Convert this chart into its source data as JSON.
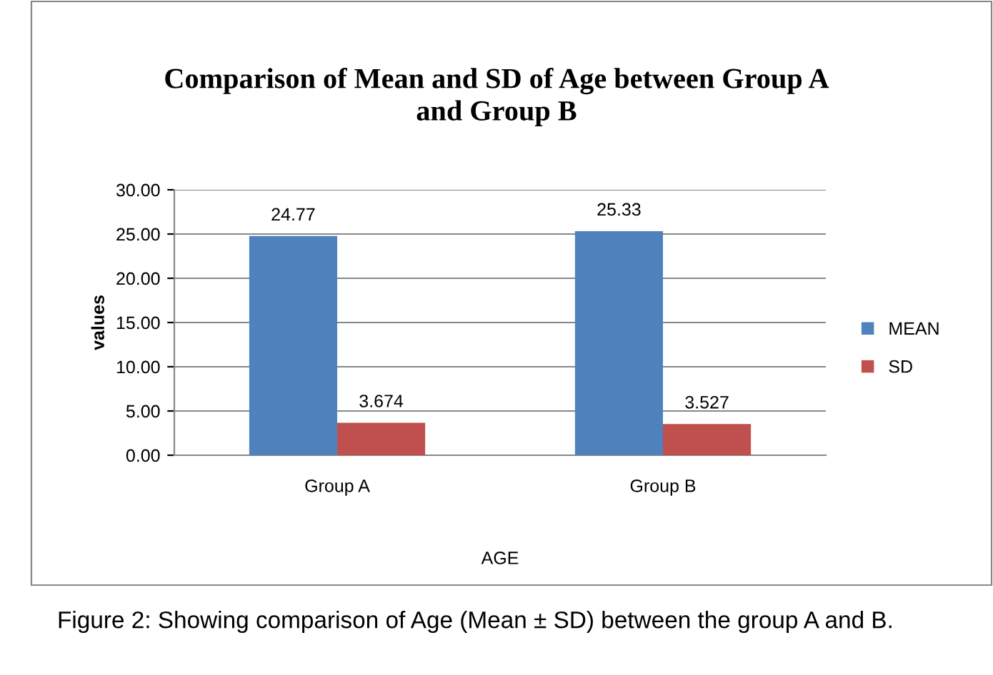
{
  "chart_data": {
    "type": "bar",
    "title": "Comparison of Mean and SD of Age between Group A\nand Group B",
    "categories": [
      "Group A",
      "Group B"
    ],
    "series": [
      {
        "name": "MEAN",
        "color": "#4f81bd",
        "values": [
          24.77,
          25.33
        ],
        "value_labels": [
          "24.77",
          "25.33"
        ]
      },
      {
        "name": "SD",
        "color": "#c0504d",
        "values": [
          3.674,
          3.527
        ],
        "value_labels": [
          "3.674",
          "3.527"
        ]
      }
    ],
    "xlabel": "AGE",
    "ylabel": "values",
    "ylim": [
      0,
      30
    ],
    "yticks": [
      {
        "value": 0,
        "label": "0.00"
      },
      {
        "value": 5,
        "label": "5.00"
      },
      {
        "value": 10,
        "label": "10.00"
      },
      {
        "value": 15,
        "label": "15.00"
      },
      {
        "value": 20,
        "label": "20.00"
      },
      {
        "value": 25,
        "label": "25.00"
      },
      {
        "value": 30,
        "label": "30.00"
      }
    ],
    "grid": "y",
    "legend": "right",
    "annotations": [
      "Figure 2: Showing comparison of Age (Mean ± SD) between the group A and B."
    ]
  }
}
